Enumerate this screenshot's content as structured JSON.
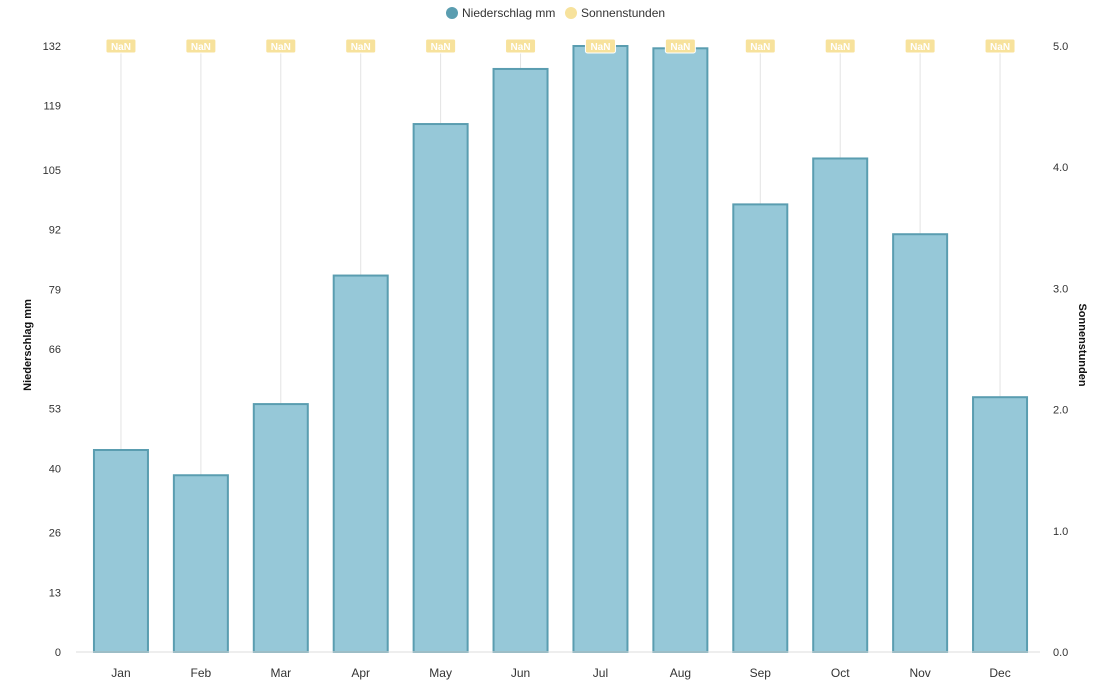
{
  "chart_data": {
    "type": "bar",
    "categories": [
      "Jan",
      "Feb",
      "Mar",
      "Apr",
      "May",
      "Jun",
      "Jul",
      "Aug",
      "Sep",
      "Oct",
      "Nov",
      "Dec"
    ],
    "series": [
      {
        "name": "Niederschlag mm",
        "axis": "left",
        "color": "#96c8d8",
        "border_color": "#5a9db0",
        "values": [
          44,
          38.5,
          54,
          82,
          115,
          127,
          132,
          131.5,
          97.5,
          107.5,
          91,
          55.5
        ]
      },
      {
        "name": "Sonnenstunden",
        "axis": "right",
        "color": "#f7e29c",
        "values": [
          null,
          null,
          null,
          null,
          null,
          null,
          null,
          null,
          null,
          null,
          null,
          null
        ],
        "value_labels": [
          "NaN",
          "NaN",
          "NaN",
          "NaN",
          "NaN",
          "NaN",
          "NaN",
          "NaN",
          "NaN",
          "NaN",
          "NaN",
          "NaN"
        ]
      }
    ],
    "y_left": {
      "label": "Niederschlag mm",
      "range": [
        0,
        132
      ],
      "ticks": [
        0,
        13,
        26,
        40,
        53,
        66,
        79,
        92,
        105,
        119,
        132
      ]
    },
    "y_right": {
      "label": "Sonnenstunden",
      "range": [
        0,
        5
      ],
      "ticks": [
        "0.0",
        "1.0",
        "2.0",
        "3.0",
        "4.0",
        "5.0"
      ]
    },
    "grid": "vertical-category-lines",
    "legend": "top-center"
  }
}
